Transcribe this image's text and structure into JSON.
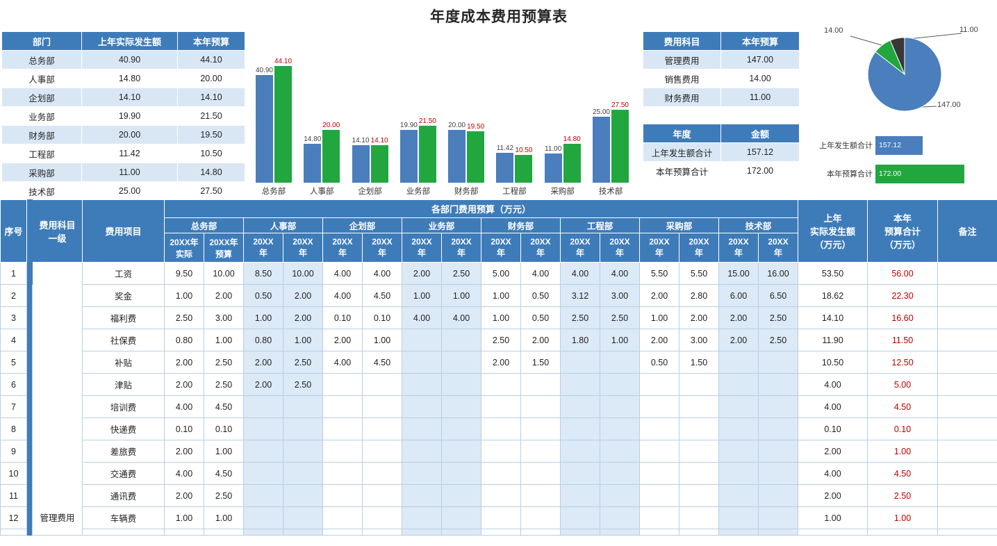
{
  "title": "年度成本费用预算表",
  "colors": {
    "header_blue": "#3e7cb9",
    "band_blue": "#dce9f6",
    "mini_band_blue": "#d9e7f5",
    "bar_blue": "#4a7ebc",
    "bar_green": "#21a73e",
    "pie_dark": "#383838",
    "value_red": "#c00000",
    "grid_line": "#b9cfe3"
  },
  "dept_table": {
    "headers": [
      "部门",
      "上年实际发生额",
      "本年预算"
    ],
    "rows": [
      [
        "总务部",
        "40.90",
        "44.10"
      ],
      [
        "人事部",
        "14.80",
        "20.00"
      ],
      [
        "企划部",
        "14.10",
        "14.10"
      ],
      [
        "业务部",
        "19.90",
        "21.50"
      ],
      [
        "财务部",
        "20.00",
        "19.50"
      ],
      [
        "工程部",
        "11.42",
        "10.50"
      ],
      [
        "采购部",
        "11.00",
        "14.80"
      ],
      [
        "技术部",
        "25.00",
        "27.50"
      ]
    ]
  },
  "category_table": {
    "headers": [
      "费用科目",
      "本年预算"
    ],
    "rows": [
      [
        "管理费用",
        "147.00"
      ],
      [
        "销售费用",
        "14.00"
      ],
      [
        "财务费用",
        "11.00"
      ]
    ]
  },
  "total_table": {
    "headers": [
      "年度",
      "金额"
    ],
    "rows": [
      [
        "上年发生额合计",
        "157.12"
      ],
      [
        "本年预算合计",
        "172.00"
      ]
    ]
  },
  "chart_data": [
    {
      "type": "bar",
      "title": "",
      "categories": [
        "总务部",
        "人事部",
        "企划部",
        "业务部",
        "财务部",
        "工程部",
        "采购部",
        "技术部"
      ],
      "series": [
        {
          "name": "上年实际发生额",
          "color": "#4a7ebc",
          "values": [
            40.9,
            14.8,
            14.1,
            19.9,
            20.0,
            11.42,
            11.0,
            25.0
          ]
        },
        {
          "name": "本年预算",
          "color": "#21a73e",
          "values": [
            44.1,
            20.0,
            14.1,
            21.5,
            19.5,
            10.5,
            14.8,
            27.5
          ]
        }
      ],
      "ylim": [
        0,
        48
      ],
      "grid": false,
      "legend": "none"
    },
    {
      "type": "pie",
      "labels": [
        "管理费用",
        "销售费用",
        "财务费用"
      ],
      "values": [
        147.0,
        14.0,
        11.0
      ],
      "colors": [
        "#4a7ebc",
        "#21a73e",
        "#383838"
      ],
      "start_angle": 0,
      "direction": "clockwise"
    },
    {
      "type": "bar",
      "orientation": "horizontal",
      "categories": [
        "上年发生额合计",
        "本年预算合计"
      ],
      "values": [
        157.12,
        172.0
      ],
      "colors": [
        "#4a7ebc",
        "#21a73e"
      ],
      "xlim": [
        140,
        175
      ]
    }
  ],
  "main_table": {
    "header": {
      "no": "序号",
      "category": "费用科目\n一级",
      "item": "费用项目",
      "group": "各部门费用预算（万元）",
      "departments": [
        "总务部",
        "人事部",
        "企划部",
        "业务部",
        "财务部",
        "工程部",
        "采购部",
        "技术部"
      ],
      "subheaders_first": [
        "20XX年\n实际",
        "20XX年\n预算"
      ],
      "subheaders": [
        "20XX\n年",
        "20XX\n年"
      ],
      "prev_total": "上年\n实际发生额\n（万元）",
      "budget_total": "本年\n预算合计\n（万元）",
      "remark": "备注"
    },
    "category_label": "管理费用",
    "rows": [
      {
        "no": "1",
        "item": "工资",
        "values": [
          "9.50",
          "10.00",
          "8.50",
          "10.00",
          "4.00",
          "4.00",
          "2.00",
          "2.50",
          "5.00",
          "4.00",
          "4.00",
          "4.00",
          "5.50",
          "5.50",
          "15.00",
          "16.00"
        ],
        "prev": "53.50",
        "budget": "56.00",
        "remark": ""
      },
      {
        "no": "2",
        "item": "奖金",
        "values": [
          "1.00",
          "2.00",
          "0.50",
          "2.00",
          "4.00",
          "4.50",
          "1.00",
          "1.00",
          "1.00",
          "0.50",
          "3.12",
          "3.00",
          "2.00",
          "2.80",
          "6.00",
          "6.50"
        ],
        "prev": "18.62",
        "budget": "22.30",
        "remark": ""
      },
      {
        "no": "3",
        "item": "福利费",
        "values": [
          "2.50",
          "3.00",
          "1.00",
          "2.00",
          "0.10",
          "0.10",
          "4.00",
          "4.00",
          "1.00",
          "0.50",
          "2.50",
          "2.50",
          "1.00",
          "2.00",
          "2.00",
          "2.50"
        ],
        "prev": "14.10",
        "budget": "16.60",
        "remark": ""
      },
      {
        "no": "4",
        "item": "社保费",
        "values": [
          "0.80",
          "1.00",
          "0.80",
          "1.00",
          "2.00",
          "1.00",
          "",
          "",
          "2.50",
          "2.00",
          "1.80",
          "1.00",
          "2.00",
          "3.00",
          "2.00",
          "2.50"
        ],
        "prev": "11.90",
        "budget": "11.50",
        "remark": ""
      },
      {
        "no": "5",
        "item": "补贴",
        "values": [
          "2.00",
          "2.50",
          "2.00",
          "2.50",
          "4.00",
          "4.50",
          "",
          "",
          "2.00",
          "1.50",
          "",
          "",
          "0.50",
          "1.50",
          "",
          ""
        ],
        "prev": "10.50",
        "budget": "12.50",
        "remark": ""
      },
      {
        "no": "6",
        "item": "津贴",
        "values": [
          "2.00",
          "2.50",
          "2.00",
          "2.50",
          "",
          "",
          "",
          "",
          "",
          "",
          "",
          "",
          "",
          "",
          "",
          ""
        ],
        "prev": "4.00",
        "budget": "5.00",
        "remark": ""
      },
      {
        "no": "7",
        "item": "培训费",
        "values": [
          "4.00",
          "4.50",
          "",
          "",
          "",
          "",
          "",
          "",
          "",
          "",
          "",
          "",
          "",
          "",
          "",
          ""
        ],
        "prev": "4.00",
        "budget": "4.50",
        "remark": ""
      },
      {
        "no": "8",
        "item": "快递费",
        "values": [
          "0.10",
          "0.10",
          "",
          "",
          "",
          "",
          "",
          "",
          "",
          "",
          "",
          "",
          "",
          "",
          "",
          ""
        ],
        "prev": "0.10",
        "budget": "0.10",
        "remark": ""
      },
      {
        "no": "9",
        "item": "差旅费",
        "values": [
          "2.00",
          "1.00",
          "",
          "",
          "",
          "",
          "",
          "",
          "",
          "",
          "",
          "",
          "",
          "",
          "",
          ""
        ],
        "prev": "2.00",
        "budget": "1.00",
        "remark": ""
      },
      {
        "no": "10",
        "item": "交通费",
        "values": [
          "4.00",
          "4.50",
          "",
          "",
          "",
          "",
          "",
          "",
          "",
          "",
          "",
          "",
          "",
          "",
          "",
          ""
        ],
        "prev": "4.00",
        "budget": "4.50",
        "remark": ""
      },
      {
        "no": "11",
        "item": "通讯费",
        "values": [
          "2.00",
          "2.50",
          "",
          "",
          "",
          "",
          "",
          "",
          "",
          "",
          "",
          "",
          "",
          "",
          "",
          ""
        ],
        "prev": "2.00",
        "budget": "2.50",
        "remark": ""
      },
      {
        "no": "12",
        "item": "车辆费",
        "values": [
          "1.00",
          "1.00",
          "",
          "",
          "",
          "",
          "",
          "",
          "",
          "",
          "",
          "",
          "",
          "",
          "",
          ""
        ],
        "prev": "1.00",
        "budget": "1.00",
        "remark": ""
      }
    ]
  }
}
